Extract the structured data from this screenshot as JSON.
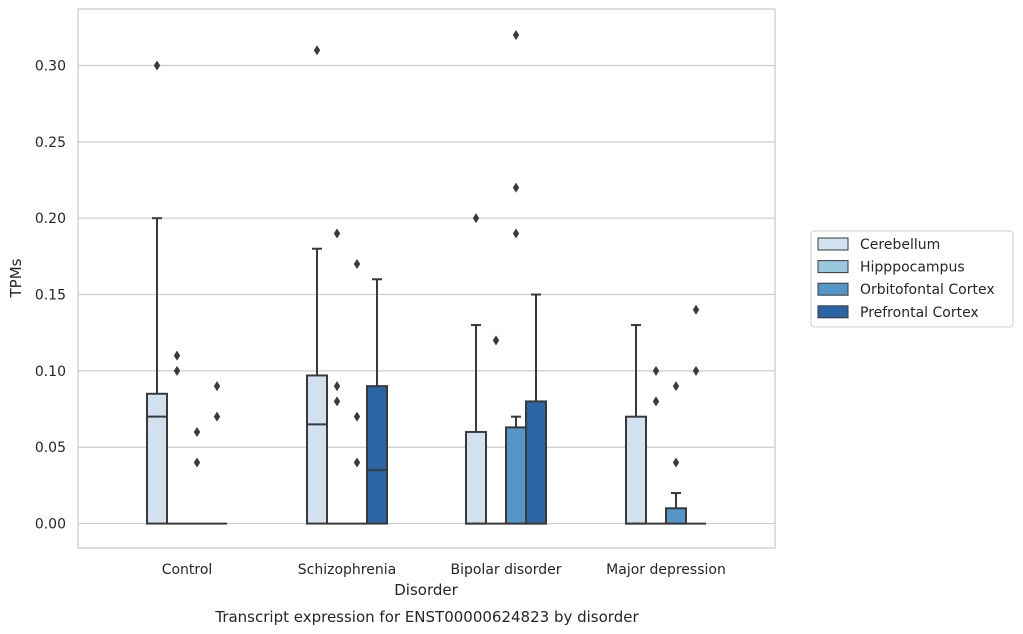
{
  "chart_data": {
    "type": "box",
    "title": "",
    "caption": "Transcript expression for ENST00000624823 by disorder",
    "xlabel": "Disorder",
    "ylabel": "TPMs",
    "ylim": [
      -0.016,
      0.337
    ],
    "yticks": [
      "0.00",
      "0.05",
      "0.10",
      "0.15",
      "0.20",
      "0.25",
      "0.30"
    ],
    "grid": "horizontal",
    "legend_position": "right",
    "categories": [
      "Control",
      "Schizophrenia",
      "Bipolar disorder",
      "Major depression"
    ],
    "series": [
      {
        "name": "Cerebellum",
        "color": "#d2e1f0",
        "boxes": [
          {
            "q1": 0.0,
            "median": 0.07,
            "q3": 0.085,
            "whisker_low": 0.0,
            "whisker_high": 0.2,
            "outliers": [
              0.3
            ]
          },
          {
            "q1": 0.0,
            "median": 0.065,
            "q3": 0.097,
            "whisker_low": 0.0,
            "whisker_high": 0.18,
            "outliers": [
              0.31
            ]
          },
          {
            "q1": 0.0,
            "median": 0.0,
            "q3": 0.06,
            "whisker_low": 0.0,
            "whisker_high": 0.13,
            "outliers": [
              0.2
            ]
          },
          {
            "q1": 0.0,
            "median": 0.0,
            "q3": 0.07,
            "whisker_low": 0.0,
            "whisker_high": 0.13,
            "outliers": []
          }
        ]
      },
      {
        "name": "Hipppocampus",
        "color": "#9ac8e0",
        "boxes": [
          {
            "q1": 0.0,
            "median": 0.0,
            "q3": 0.0,
            "whisker_low": 0.0,
            "whisker_high": 0.0,
            "outliers": [
              0.11,
              0.1
            ]
          },
          {
            "q1": 0.0,
            "median": 0.0,
            "q3": 0.0,
            "whisker_low": 0.0,
            "whisker_high": 0.0,
            "outliers": [
              0.19,
              0.09,
              0.08
            ]
          },
          {
            "q1": 0.0,
            "median": 0.0,
            "q3": 0.0,
            "whisker_low": 0.0,
            "whisker_high": 0.0,
            "outliers": [
              0.12
            ]
          },
          {
            "q1": 0.0,
            "median": 0.0,
            "q3": 0.0,
            "whisker_low": 0.0,
            "whisker_high": 0.0,
            "outliers": [
              0.1,
              0.08
            ]
          }
        ]
      },
      {
        "name": "Orbitofontal Cortex",
        "color": "#5496c8",
        "boxes": [
          {
            "q1": 0.0,
            "median": 0.0,
            "q3": 0.0,
            "whisker_low": 0.0,
            "whisker_high": 0.0,
            "outliers": [
              0.06,
              0.04
            ]
          },
          {
            "q1": 0.0,
            "median": 0.0,
            "q3": 0.0,
            "whisker_low": 0.0,
            "whisker_high": 0.0,
            "outliers": [
              0.17,
              0.07,
              0.04
            ]
          },
          {
            "q1": 0.0,
            "median": 0.0,
            "q3": 0.063,
            "whisker_low": 0.0,
            "whisker_high": 0.07,
            "outliers": [
              0.32,
              0.22,
              0.19
            ]
          },
          {
            "q1": 0.0,
            "median": 0.0,
            "q3": 0.01,
            "whisker_low": 0.0,
            "whisker_high": 0.02,
            "outliers": [
              0.09,
              0.04
            ]
          }
        ]
      },
      {
        "name": "Prefrontal Cortex",
        "color": "#2b65a5",
        "boxes": [
          {
            "q1": 0.0,
            "median": 0.0,
            "q3": 0.0,
            "whisker_low": 0.0,
            "whisker_high": 0.0,
            "outliers": [
              0.09,
              0.07
            ]
          },
          {
            "q1": 0.0,
            "median": 0.035,
            "q3": 0.09,
            "whisker_low": 0.0,
            "whisker_high": 0.16,
            "outliers": []
          },
          {
            "q1": 0.0,
            "median": 0.0,
            "q3": 0.08,
            "whisker_low": 0.0,
            "whisker_high": 0.15,
            "outliers": []
          },
          {
            "q1": 0.0,
            "median": 0.0,
            "q3": 0.0,
            "whisker_low": 0.0,
            "whisker_high": 0.0,
            "outliers": [
              0.14,
              0.1
            ]
          }
        ]
      }
    ]
  }
}
